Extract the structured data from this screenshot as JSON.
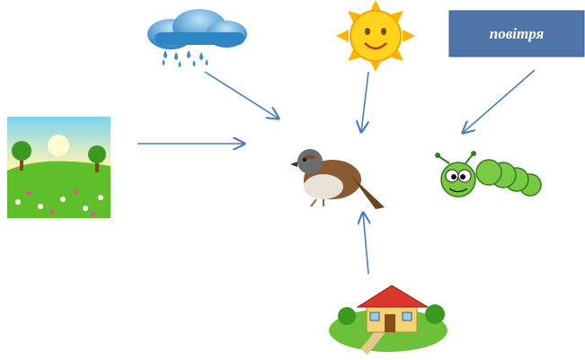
{
  "box": {
    "label": "повітря"
  }
}
